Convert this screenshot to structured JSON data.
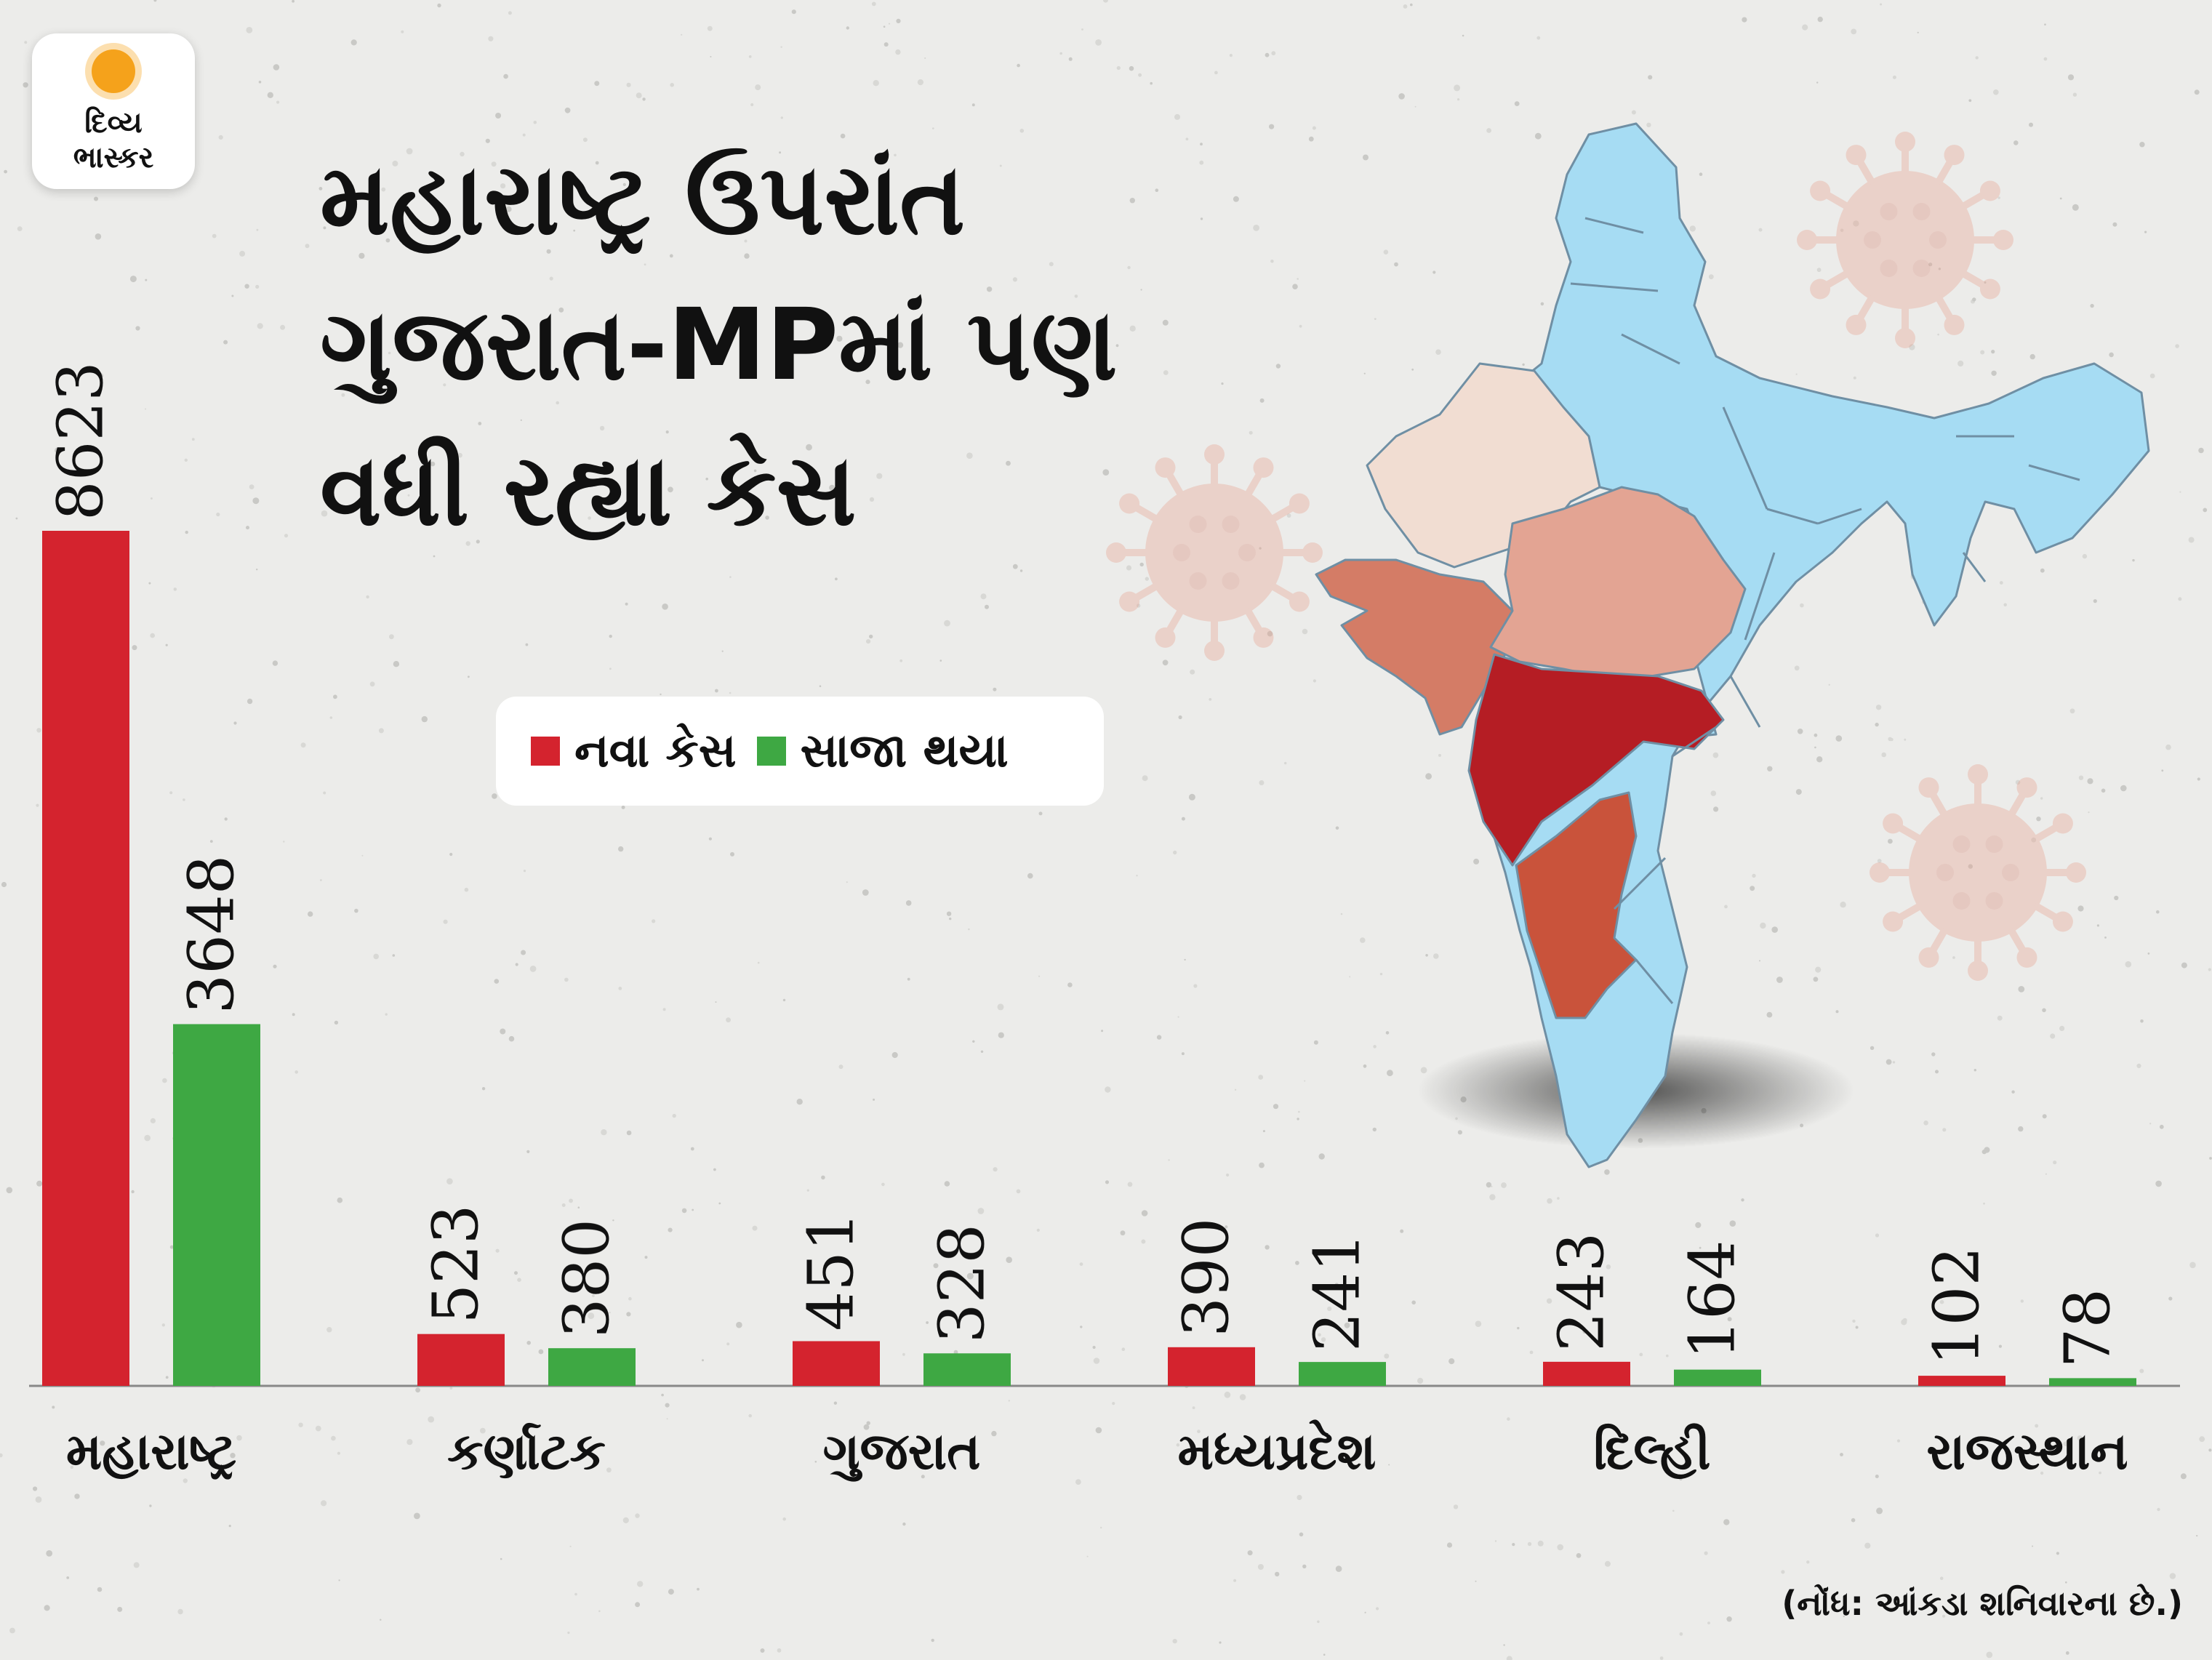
{
  "logo": {
    "line1": "દિવ્ય",
    "line2": "ભાસ્કર"
  },
  "title_lines": [
    "મહારાષ્ટ્ર ઉપરાંત",
    "ગુજરાત-MPમાં પણ",
    "વધી રહ્યા કેસ"
  ],
  "note": "(નોંધ: આંકડા શનિવારના છે.)",
  "colors": {
    "new_cases": "#d4232e",
    "recovered": "#3ea843",
    "map_base": "#a6dcf3",
    "map_maharashtra": "#b51d24",
    "map_karnataka": "#c9533b",
    "map_gujarat": "#d47c66",
    "map_mp": "#e3a493",
    "map_rajasthan": "#f1ddd2"
  },
  "chart_data": {
    "type": "bar",
    "title": "મહારાષ્ટ્ર ઉપરાંત ગુજરાત-MPમાં પણ વધી રહ્યા કેસ",
    "categories": [
      "મહારાષ્ટ્ર",
      "કર્ણાટક",
      "ગુજરાત",
      "મધ્યપ્રદેશ",
      "દિલ્હી",
      "રાજસ્થાન"
    ],
    "series": [
      {
        "name": "નવા કેસ",
        "values": [
          8623,
          523,
          451,
          390,
          243,
          102
        ]
      },
      {
        "name": "સાજા થયા",
        "values": [
          3648,
          380,
          328,
          241,
          164,
          78
        ]
      }
    ],
    "ylim": [
      0,
      8623
    ],
    "grid": false,
    "legend": "top-center",
    "xlabel": "",
    "ylabel": ""
  }
}
